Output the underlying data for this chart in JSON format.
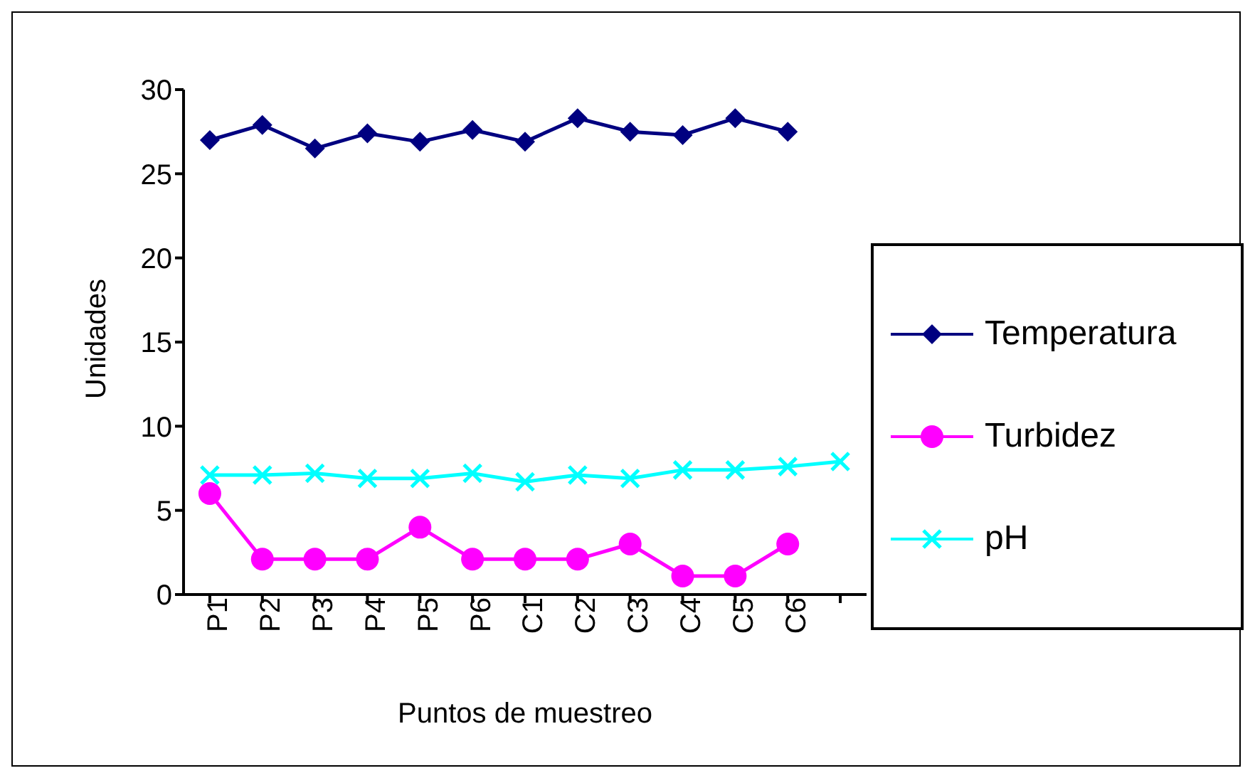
{
  "chart_data": {
    "type": "line",
    "xlabel": "Puntos de muestreo",
    "ylabel": "Unidades",
    "categories": [
      "P1",
      "P2",
      "P3",
      "P4",
      "P5",
      "P6",
      "C1",
      "C2",
      "C3",
      "C4",
      "C5",
      "C6",
      null
    ],
    "series": [
      {
        "name": "Temperatura",
        "color": "#000080",
        "marker": "diamond",
        "values": [
          27.0,
          27.9,
          26.5,
          27.4,
          26.9,
          27.6,
          26.9,
          28.3,
          27.5,
          27.3,
          28.3,
          27.5,
          null
        ]
      },
      {
        "name": "Turbidez",
        "color": "#ff00ff",
        "marker": "circle",
        "values": [
          6.0,
          2.1,
          2.1,
          2.1,
          4.0,
          2.1,
          2.1,
          2.1,
          3.0,
          1.1,
          1.1,
          3.0,
          null
        ]
      },
      {
        "name": "pH",
        "color": "#00ffff",
        "marker": "cross",
        "values": [
          7.1,
          7.1,
          7.2,
          6.9,
          6.9,
          7.2,
          6.7,
          7.1,
          6.9,
          7.4,
          7.4,
          7.6,
          7.9
        ]
      }
    ],
    "ylim": [
      0,
      30
    ],
    "yticks": [
      0,
      5,
      10,
      15,
      20,
      25,
      30
    ],
    "grid": false,
    "legend": "right",
    "line_style": "solid"
  }
}
